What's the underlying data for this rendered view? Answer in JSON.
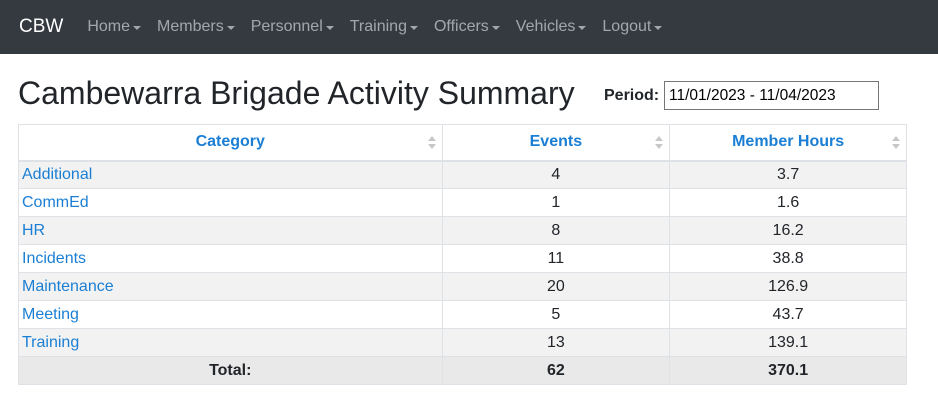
{
  "navbar": {
    "brand": "CBW",
    "items": [
      "Home",
      "Members",
      "Personnel",
      "Training",
      "Officers",
      "Vehicles",
      "Logout"
    ]
  },
  "page": {
    "title": "Cambewarra Brigade Activity Summary",
    "period_label": "Period:",
    "period_value": "11/01/2023 - 11/04/2023"
  },
  "table": {
    "headers": [
      "Category",
      "Events",
      "Member Hours"
    ],
    "rows": [
      [
        "Additional",
        "4",
        "3.7"
      ],
      [
        "CommEd",
        "1",
        "1.6"
      ],
      [
        "HR",
        "8",
        "16.2"
      ],
      [
        "Incidents",
        "11",
        "38.8"
      ],
      [
        "Maintenance",
        "20",
        "126.9"
      ],
      [
        "Meeting",
        "5",
        "43.7"
      ],
      [
        "Training",
        "13",
        "139.1"
      ]
    ],
    "total": {
      "label": "Total:",
      "events": "62",
      "hours": "370.1"
    }
  }
}
